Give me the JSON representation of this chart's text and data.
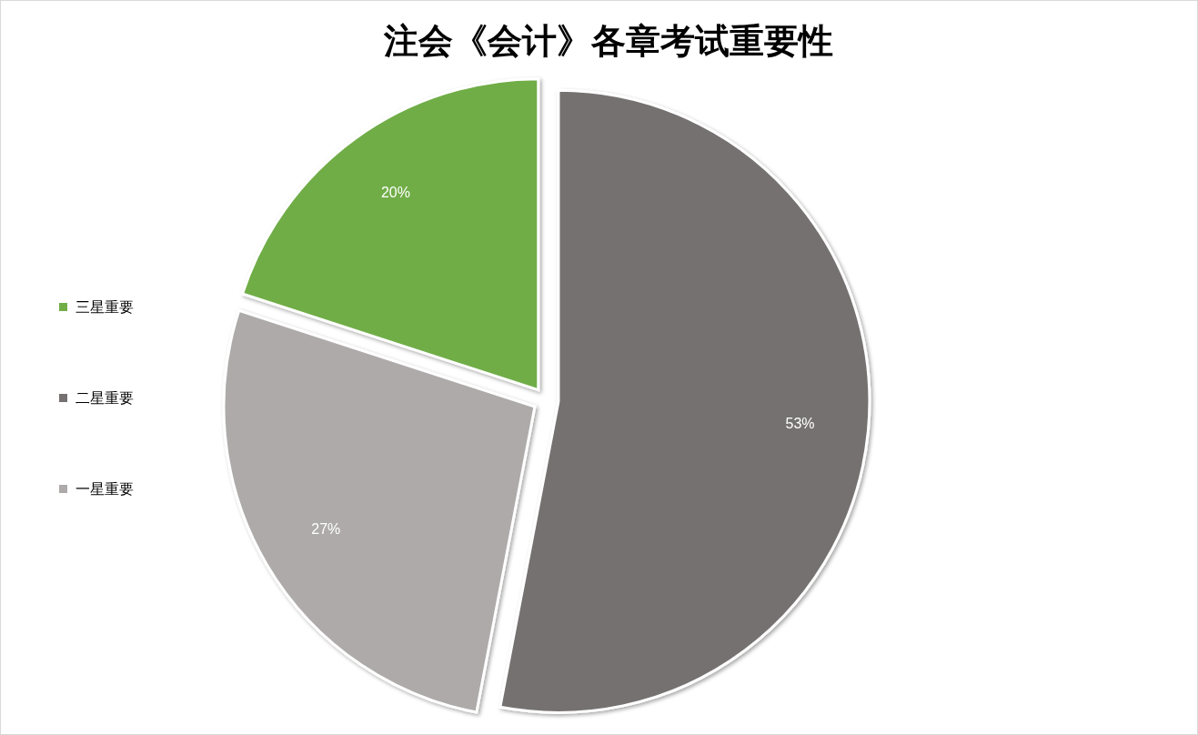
{
  "chart_data": {
    "type": "pie",
    "title": "注会《会计》各章考试重要性",
    "categories": [
      "三星重要",
      "二星重要",
      "一星重要"
    ],
    "values": [
      20,
      53,
      27
    ],
    "colors": [
      "#70ad47",
      "#767171",
      "#aeaaaa"
    ],
    "value_labels": [
      "20%",
      "53%",
      "27%"
    ],
    "legend": "left"
  }
}
